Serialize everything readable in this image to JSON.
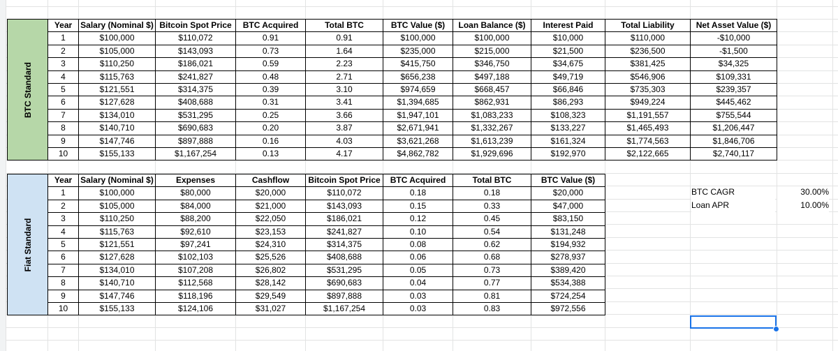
{
  "sections": [
    {
      "label": "BTC Standard",
      "headers": [
        "Year",
        "Salary (Nominal $)",
        "Bitcoin Spot Price",
        "BTC Acquired",
        "Total BTC",
        "BTC Value ($)",
        "Loan Balance ($)",
        "Interest Paid",
        "Total Liability",
        "Net Asset Value ($)"
      ],
      "rows": [
        [
          "1",
          "$100,000",
          "$110,072",
          "0.91",
          "0.91",
          "$100,000",
          "$100,000",
          "$10,000",
          "$110,000",
          "-$10,000"
        ],
        [
          "2",
          "$105,000",
          "$143,093",
          "0.73",
          "1.64",
          "$235,000",
          "$215,000",
          "$21,500",
          "$236,500",
          "-$1,500"
        ],
        [
          "3",
          "$110,250",
          "$186,021",
          "0.59",
          "2.23",
          "$415,750",
          "$346,750",
          "$34,675",
          "$381,425",
          "$34,325"
        ],
        [
          "4",
          "$115,763",
          "$241,827",
          "0.48",
          "2.71",
          "$656,238",
          "$497,188",
          "$49,719",
          "$546,906",
          "$109,331"
        ],
        [
          "5",
          "$121,551",
          "$314,375",
          "0.39",
          "3.10",
          "$974,659",
          "$668,457",
          "$66,846",
          "$735,303",
          "$239,357"
        ],
        [
          "6",
          "$127,628",
          "$408,688",
          "0.31",
          "3.41",
          "$1,394,685",
          "$862,931",
          "$86,293",
          "$949,224",
          "$445,462"
        ],
        [
          "7",
          "$134,010",
          "$531,295",
          "0.25",
          "3.66",
          "$1,947,101",
          "$1,083,233",
          "$108,323",
          "$1,191,557",
          "$755,544"
        ],
        [
          "8",
          "$140,710",
          "$690,683",
          "0.20",
          "3.87",
          "$2,671,941",
          "$1,332,267",
          "$133,227",
          "$1,465,493",
          "$1,206,447"
        ],
        [
          "9",
          "$147,746",
          "$897,888",
          "0.16",
          "4.03",
          "$3,621,268",
          "$1,613,239",
          "$161,324",
          "$1,774,563",
          "$1,846,706"
        ],
        [
          "10",
          "$155,133",
          "$1,167,254",
          "0.13",
          "4.17",
          "$4,862,782",
          "$1,929,696",
          "$192,970",
          "$2,122,665",
          "$2,740,117"
        ]
      ]
    },
    {
      "label": "Fiat Standard",
      "headers": [
        "Year",
        "Salary (Nominal $)",
        "Expenses",
        "Cashflow",
        "Bitcoin Spot Price",
        "BTC Acquired",
        "Total BTC",
        "BTC Value ($)"
      ],
      "rows": [
        [
          "1",
          "$100,000",
          "$80,000",
          "$20,000",
          "$110,072",
          "0.18",
          "0.18",
          "$20,000"
        ],
        [
          "2",
          "$105,000",
          "$84,000",
          "$21,000",
          "$143,093",
          "0.15",
          "0.33",
          "$47,000"
        ],
        [
          "3",
          "$110,250",
          "$88,200",
          "$22,050",
          "$186,021",
          "0.12",
          "0.45",
          "$83,150"
        ],
        [
          "4",
          "$115,763",
          "$92,610",
          "$23,153",
          "$241,827",
          "0.10",
          "0.54",
          "$131,248"
        ],
        [
          "5",
          "$121,551",
          "$97,241",
          "$24,310",
          "$314,375",
          "0.08",
          "0.62",
          "$194,932"
        ],
        [
          "6",
          "$127,628",
          "$102,103",
          "$25,526",
          "$408,688",
          "0.06",
          "0.68",
          "$278,937"
        ],
        [
          "7",
          "$134,010",
          "$107,208",
          "$26,802",
          "$531,295",
          "0.05",
          "0.73",
          "$389,420"
        ],
        [
          "8",
          "$140,710",
          "$112,568",
          "$28,142",
          "$690,683",
          "0.04",
          "0.77",
          "$534,388"
        ],
        [
          "9",
          "$147,746",
          "$118,196",
          "$29,549",
          "$897,888",
          "0.03",
          "0.81",
          "$724,254"
        ],
        [
          "10",
          "$155,133",
          "$124,106",
          "$31,027",
          "$1,167,254",
          "0.03",
          "0.83",
          "$972,556"
        ]
      ]
    }
  ],
  "settings": [
    [
      "BTC CAGR",
      "30.00%"
    ],
    [
      "Loan APR",
      "10.00%"
    ]
  ]
}
